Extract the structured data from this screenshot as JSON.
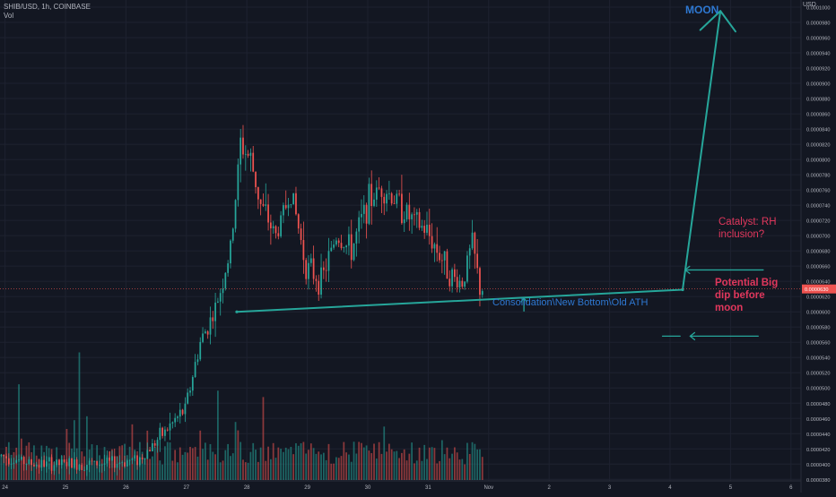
{
  "header": {
    "symbol_line": "SHIB/USD, 1h, COINBASE",
    "volume_label": "Vol",
    "currency": "USD"
  },
  "colors": {
    "background": "#131722",
    "grid": "#1e2230",
    "up": "#26a69a",
    "down": "#ef5350",
    "annotation_teal": "#26a69a",
    "annotation_blue": "#2e78d2",
    "annotation_red": "#e0375c",
    "price_badge": "#ef5350",
    "axis_text": "#b2b5be"
  },
  "chart_data": {
    "type": "candlestick",
    "title": "SHIB/USD, 1h, COINBASE",
    "x_axis": {
      "type": "date",
      "tick_labels": [
        "24",
        "25",
        "26",
        "27",
        "28",
        "29",
        "30",
        "31",
        "Nov",
        "2",
        "3",
        "4",
        "5",
        "6"
      ],
      "range": [
        "2021-10-23T22:00",
        "2021-11-06T04:00"
      ]
    },
    "y_axis": {
      "side": "right",
      "ylim": [
        3.78e-05,
        0.0001
      ],
      "tick_labels": [
        "0.0000380",
        "0.0000400",
        "0.0000420",
        "0.0000440",
        "0.0000460",
        "0.0000480",
        "0.0000500",
        "0.0000520",
        "0.0000540",
        "0.0000560",
        "0.0000580",
        "0.0000600",
        "0.0000620",
        "0.0000640",
        "0.0000660",
        "0.0000680",
        "0.0000700",
        "0.0000720",
        "0.0000740",
        "0.0000760",
        "0.0000780",
        "0.0000800",
        "0.0000820",
        "0.0000840",
        "0.0000860",
        "0.0000880",
        "0.0000900",
        "0.0000920",
        "0.0000940",
        "0.0000960",
        "0.0000980",
        "0.0001000"
      ],
      "current_price": 6.3e-05
    },
    "grid": true,
    "price_anchors": [
      [
        "2021-10-23T22:00",
        4.12e-05
      ],
      [
        "2021-10-24T12:00",
        4e-05
      ],
      [
        "2021-10-25T00:00",
        4e-05
      ],
      [
        "2021-10-25T18:00",
        4.01e-05
      ],
      [
        "2021-10-26T06:00",
        4.07e-05
      ],
      [
        "2021-10-26T18:00",
        4.5e-05
      ],
      [
        "2021-10-27T00:00",
        4.72e-05
      ],
      [
        "2021-10-27T06:00",
        5.6e-05
      ],
      [
        "2021-10-27T12:00",
        6.03e-05
      ],
      [
        "2021-10-27T18:00",
        6.8e-05
      ],
      [
        "2021-10-27T22:00",
        8.2e-05
      ],
      [
        "2021-10-28T02:00",
        8e-05
      ],
      [
        "2021-10-28T06:00",
        7.4e-05
      ],
      [
        "2021-10-28T12:00",
        7e-05
      ],
      [
        "2021-10-28T18:00",
        7.6e-05
      ],
      [
        "2021-10-29T00:00",
        6.6e-05
      ],
      [
        "2021-10-29T06:00",
        6.4e-05
      ],
      [
        "2021-10-29T12:00",
        7e-05
      ],
      [
        "2021-10-29T18:00",
        6.8e-05
      ],
      [
        "2021-10-30T00:00",
        7.4e-05
      ],
      [
        "2021-10-30T06:00",
        7.65e-05
      ],
      [
        "2021-10-30T12:00",
        7.45e-05
      ],
      [
        "2021-10-30T18:00",
        7.2e-05
      ],
      [
        "2021-10-31T00:00",
        7.05e-05
      ],
      [
        "2021-10-31T06:00",
        6.7e-05
      ],
      [
        "2021-10-31T10:00",
        6.45e-05
      ],
      [
        "2021-10-31T14:00",
        6.38e-05
      ],
      [
        "2021-10-31T18:00",
        6.9e-05
      ],
      [
        "2021-10-31T21:00",
        6.3e-05
      ]
    ],
    "volume_peaks": [
      [
        "2021-10-24T05:00",
        0.75
      ],
      [
        "2021-10-25T05:00",
        0.92
      ],
      [
        "2021-10-27T12:00",
        0.7
      ],
      [
        "2021-10-28T06:00",
        0.65
      ],
      [
        "2021-10-30T06:00",
        0.4
      ]
    ]
  },
  "drawings": {
    "consolidation_line": {
      "from": [
        "2021-10-27T20:00",
        6e-05
      ],
      "to": [
        "2021-11-04T05:00",
        6.29e-05
      ]
    },
    "moon_line": {
      "from": [
        "2021-11-04T05:00",
        6.29e-05
      ],
      "to": [
        "2021-11-04T20:00",
        9.95e-05
      ]
    },
    "moon_arrowhead_left": [
      "2021-11-04T12:00",
      9.7e-05
    ],
    "moon_arrowhead_right": [
      "2021-11-05T02:00",
      9.68e-05
    ],
    "up_arrow": {
      "at": "2021-11-01T14:00",
      "from": 6.01e-05,
      "to": 6.18e-05
    },
    "catalyst_arrow": {
      "from": [
        "2021-11-05T13:00",
        6.55e-05
      ],
      "to": [
        "2021-11-04T06:00",
        6.55e-05
      ]
    },
    "dip_arrow": {
      "from": [
        "2021-11-05T11:00",
        5.68e-05
      ],
      "to": [
        "2021-11-04T08:00",
        5.68e-05
      ]
    },
    "dip_dash": {
      "from": [
        "2021-11-03T21:00",
        5.68e-05
      ],
      "to": [
        "2021-11-04T04:00",
        5.68e-05
      ]
    }
  },
  "annotations": {
    "moon": "MOON",
    "catalyst_line1": "Catalyst: RH",
    "catalyst_line2": "inclusion?",
    "consolidation": "Consolidation\\New Bottom\\Old ATH",
    "dip_line1": "Potential Big",
    "dip_line2": "dip before",
    "dip_line3": "moon"
  }
}
